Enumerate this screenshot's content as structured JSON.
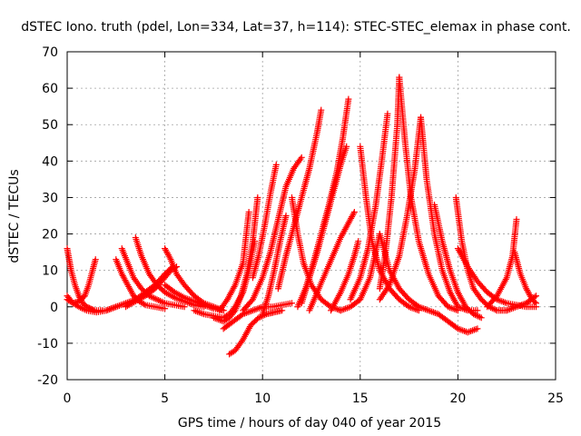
{
  "chart_data": {
    "type": "scatter",
    "title": "dSTEC Iono. truth (pdel, Lon=334, Lat=37, h=114): STEC-STEC_elemax in phase cont.",
    "xlabel": "GPS time / hours of day 040 of year 2015",
    "ylabel": "dSTEC  / TECUs",
    "xlim": [
      0,
      25
    ],
    "ylim": [
      -20,
      70
    ],
    "xticks": [
      0,
      5,
      10,
      15,
      20,
      25
    ],
    "yticks": [
      -20,
      -10,
      0,
      10,
      20,
      30,
      40,
      50,
      60,
      70
    ],
    "grid": true,
    "marker": "plus",
    "color": "#ff0000",
    "series": [
      {
        "x": [
          0.0,
          0.2,
          0.4,
          0.6,
          0.8,
          1.0,
          1.2,
          1.4,
          1.6,
          1.8
        ],
        "y": [
          16,
          10,
          6,
          3,
          1,
          0,
          -0.5,
          -1,
          -1,
          -1
        ]
      },
      {
        "x": [
          0.0,
          0.3,
          0.6,
          0.9,
          1.1,
          1.3,
          1.45
        ],
        "y": [
          2,
          1,
          1.5,
          3,
          6,
          10,
          13
        ]
      },
      {
        "x": [
          0.0,
          0.3,
          0.6,
          1.0,
          1.5,
          2.0,
          2.5
        ],
        "y": [
          3,
          1,
          0,
          -1,
          -1.5,
          -1,
          0
        ]
      },
      {
        "x": [
          2.5,
          2.8,
          3.1,
          3.4,
          3.7,
          4.0,
          4.5,
          5.0
        ],
        "y": [
          13,
          9,
          6,
          3,
          1.5,
          0.5,
          0,
          -0.5
        ]
      },
      {
        "x": [
          2.8,
          3.1,
          3.4,
          3.8,
          4.2,
          4.6,
          5.0,
          5.5,
          6.0
        ],
        "y": [
          16,
          12,
          8,
          5,
          3,
          2,
          1,
          0.5,
          0
        ]
      },
      {
        "x": [
          3.5,
          3.8,
          4.2,
          4.6,
          5.0,
          5.5,
          6.0,
          6.5,
          7.0
        ],
        "y": [
          19,
          14,
          9,
          6,
          4,
          2.5,
          1.5,
          0.5,
          0
        ]
      },
      {
        "x": [
          2.0,
          2.5,
          3.0,
          3.5,
          4.0,
          4.5,
          5.0,
          5.4
        ],
        "y": [
          -1,
          0,
          1,
          2,
          4,
          6,
          9,
          11
        ]
      },
      {
        "x": [
          3.0,
          3.5,
          4.0,
          4.5,
          5.0,
          5.3,
          5.6
        ],
        "y": [
          0,
          1.5,
          3,
          5,
          8,
          10,
          11
        ]
      },
      {
        "x": [
          5.0,
          5.3,
          5.6,
          6.0,
          6.5,
          7.0,
          7.5,
          8.0
        ],
        "y": [
          16,
          13,
          9,
          6,
          3,
          1,
          0,
          -1
        ]
      },
      {
        "x": [
          5.0,
          5.5,
          6.0,
          6.5,
          7.0,
          7.5,
          8.0
        ],
        "y": [
          6,
          4,
          2.5,
          1.5,
          0.5,
          -0.5,
          -1
        ]
      },
      {
        "x": [
          6.5,
          7.0,
          7.5,
          8.0,
          8.3,
          8.6,
          9.0,
          9.3,
          9.6
        ],
        "y": [
          -1,
          -2,
          -2.5,
          -3,
          -2,
          0,
          4,
          10,
          18
        ]
      },
      {
        "x": [
          7.5,
          8.0,
          8.3,
          8.6,
          8.9,
          9.2,
          9.5,
          9.75
        ],
        "y": [
          -3,
          -4,
          -3,
          -1,
          3,
          9,
          18,
          30
        ]
      },
      {
        "x": [
          7.8,
          8.2,
          8.6,
          9.0,
          9.3
        ],
        "y": [
          -1,
          2,
          6,
          12,
          26
        ]
      },
      {
        "x": [
          8.3,
          8.6,
          9.0,
          9.4,
          9.8,
          10.2,
          10.6,
          11.0
        ],
        "y": [
          -13,
          -12,
          -9,
          -5,
          -3,
          -2,
          -1.5,
          -1
        ]
      },
      {
        "x": [
          8.0,
          8.5,
          9.0,
          9.5,
          10.0,
          10.5,
          11.0,
          11.5
        ],
        "y": [
          -6,
          -4,
          -2,
          -1,
          0,
          0,
          0.5,
          1
        ]
      },
      {
        "x": [
          9.0,
          9.5,
          10.0,
          10.4,
          10.8,
          11.2,
          11.6,
          12.0
        ],
        "y": [
          -1,
          2,
          8,
          15,
          24,
          33,
          38,
          41
        ]
      },
      {
        "x": [
          9.5,
          9.8,
          10.1,
          10.4,
          10.7
        ],
        "y": [
          8,
          14,
          22,
          31,
          39
        ]
      },
      {
        "x": [
          10.0,
          10.3,
          10.6,
          10.9,
          11.2
        ],
        "y": [
          -2,
          3,
          10,
          18,
          25
        ]
      },
      {
        "x": [
          10.8,
          11.2,
          11.6,
          12.0,
          12.4,
          12.8,
          13.0
        ],
        "y": [
          5,
          14,
          22,
          30,
          38,
          48,
          54
        ]
      },
      {
        "x": [
          11.5,
          11.8,
          12.1,
          12.5,
          13.0,
          13.5,
          14.0
        ],
        "y": [
          30,
          20,
          12,
          6,
          2,
          0,
          -1
        ]
      },
      {
        "x": [
          11.8,
          12.2,
          12.6,
          13.0,
          13.4,
          13.8,
          14.1,
          14.4
        ],
        "y": [
          0,
          5,
          12,
          20,
          28,
          37,
          46,
          57
        ]
      },
      {
        "x": [
          12.0,
          12.4,
          12.8,
          13.2,
          13.6,
          14.0,
          14.3
        ],
        "y": [
          1,
          8,
          15,
          23,
          31,
          39,
          44
        ]
      },
      {
        "x": [
          12.4,
          12.8,
          13.2,
          13.6,
          14.0,
          14.4,
          14.7
        ],
        "y": [
          -1,
          4,
          9,
          14,
          19,
          23,
          26
        ]
      },
      {
        "x": [
          13.5,
          14.0,
          14.4,
          14.7,
          14.9
        ],
        "y": [
          -1,
          4,
          9,
          14,
          18
        ]
      },
      {
        "x": [
          15.0,
          15.3,
          15.6,
          16.0,
          16.5,
          17.0,
          17.5,
          18.0
        ],
        "y": [
          44,
          30,
          18,
          10,
          5,
          2,
          0,
          -1
        ]
      },
      {
        "x": [
          14.5,
          15.0,
          15.4,
          15.8,
          16.1,
          16.4
        ],
        "y": [
          2,
          8,
          16,
          28,
          40,
          53
        ]
      },
      {
        "x": [
          14.0,
          14.5,
          15.0,
          15.5,
          16.0
        ],
        "y": [
          -1,
          0,
          2,
          8,
          20
        ]
      },
      {
        "x": [
          16.0,
          16.3,
          16.6,
          16.9,
          17.0
        ],
        "y": [
          5,
          15,
          30,
          50,
          63
        ]
      },
      {
        "x": [
          17.0,
          17.3,
          17.6,
          18.0,
          18.5,
          19.0,
          19.5,
          20.0
        ],
        "y": [
          63,
          45,
          30,
          18,
          9,
          3,
          0,
          -1
        ]
      },
      {
        "x": [
          16.0,
          16.5,
          17.0,
          17.4,
          17.8,
          18.1
        ],
        "y": [
          2,
          6,
          14,
          25,
          38,
          52
        ]
      },
      {
        "x": [
          18.1,
          18.4,
          18.8,
          19.2,
          19.6,
          20.0,
          20.5,
          21.0
        ],
        "y": [
          52,
          35,
          20,
          10,
          4,
          0,
          -1,
          -1
        ]
      },
      {
        "x": [
          16.0,
          16.5,
          17.0,
          17.5,
          18.0,
          18.5,
          19.0,
          19.5,
          20.0,
          20.5,
          21.0
        ],
        "y": [
          20,
          10,
          5,
          2,
          0,
          -1,
          -2,
          -4,
          -6,
          -7,
          -6
        ]
      },
      {
        "x": [
          18.8,
          19.2,
          19.6,
          20.0,
          20.4,
          20.8,
          21.2
        ],
        "y": [
          28,
          18,
          10,
          4,
          0,
          -2,
          -3
        ]
      },
      {
        "x": [
          19.9,
          20.2,
          20.5,
          20.8,
          21.2,
          21.6,
          22.0,
          22.5
        ],
        "y": [
          30,
          18,
          10,
          5,
          2,
          0,
          -1,
          -1
        ]
      },
      {
        "x": [
          20.0,
          20.5,
          21.0,
          21.5,
          22.0,
          22.5,
          23.0,
          23.5,
          24.0
        ],
        "y": [
          16,
          11,
          7,
          4,
          2,
          1,
          0.5,
          0,
          0
        ]
      },
      {
        "x": [
          21.5,
          22.0,
          22.5,
          22.8,
          23.0
        ],
        "y": [
          0,
          3,
          8,
          14,
          24
        ]
      },
      {
        "x": [
          22.9,
          23.2,
          23.5,
          23.8,
          24.0
        ],
        "y": [
          15,
          9,
          5,
          2,
          1
        ]
      },
      {
        "x": [
          22.0,
          22.5,
          23.0,
          23.5,
          24.0
        ],
        "y": [
          -1,
          -1,
          0,
          1,
          3
        ]
      }
    ]
  }
}
